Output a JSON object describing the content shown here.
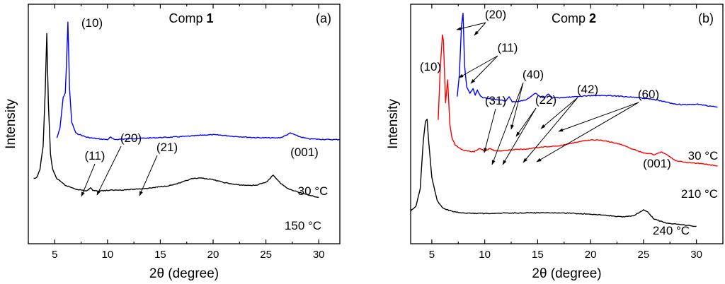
{
  "chart_data": [
    {
      "id": "a",
      "type": "line",
      "title": "Comp 1",
      "title_prefix": "Comp",
      "title_bold": "1",
      "panel_label": "(a)",
      "xlabel": "2θ (degree)",
      "ylabel": "Intensity",
      "xlim": [
        2.5,
        32
      ],
      "xticks": [
        5,
        10,
        15,
        20,
        25,
        30
      ],
      "ylim": [
        0,
        100
      ],
      "series": [
        {
          "name": "30 °C",
          "color": "#0000ff",
          "x": [
            5.2,
            5.5,
            5.8,
            6.0,
            6.1,
            6.25,
            6.4,
            6.6,
            7.0,
            8.0,
            9.0,
            10.0,
            10.3,
            10.6,
            12,
            14,
            16,
            18,
            19,
            20,
            21,
            22,
            24,
            26,
            26.5,
            27,
            27.3,
            27.6,
            28,
            28.5,
            29,
            30,
            31,
            32
          ],
          "y": [
            24,
            30,
            49,
            52,
            67,
            96,
            55,
            34,
            27,
            24.5,
            23.5,
            23,
            24.5,
            23,
            23.5,
            24,
            24.5,
            25.2,
            25.8,
            26,
            25.6,
            25,
            24.2,
            24,
            24.4,
            26,
            27,
            26.4,
            25.2,
            24.2,
            23.5,
            23.2,
            23,
            23
          ]
        },
        {
          "name": "150 °C",
          "color": "#000000",
          "x": [
            3.0,
            3.3,
            3.6,
            3.9,
            4.1,
            4.25,
            4.4,
            4.6,
            4.8,
            5.2,
            6,
            7,
            8,
            8.4,
            8.6,
            9,
            10,
            12,
            14,
            16,
            17,
            18,
            19,
            20,
            21,
            22,
            23,
            24,
            25,
            25.7,
            26.3,
            27,
            28,
            29,
            30
          ],
          "y": [
            15,
            15.5,
            20,
            32,
            62,
            92,
            55,
            28,
            20,
            15,
            11.5,
            9.5,
            8.5,
            10,
            9,
            8.5,
            8.8,
            9.2,
            10,
            11.5,
            13,
            15,
            15.3,
            14.5,
            13,
            12,
            11.5,
            11.5,
            13,
            17,
            13,
            10,
            8,
            6.5,
            5
          ]
        }
      ],
      "annotations": [
        "(10)",
        "(11)",
        "(20)",
        "(21)",
        "(001)",
        "30 °C",
        "150 °C"
      ]
    },
    {
      "id": "b",
      "type": "line",
      "title": "Comp 2",
      "title_prefix": "Comp",
      "title_bold": "2",
      "panel_label": "(b)",
      "xlabel": "2θ (degree)",
      "ylabel": "Intensity",
      "xlim": [
        3,
        32.5
      ],
      "xticks": [
        5,
        10,
        15,
        20,
        25,
        30
      ],
      "ylim": [
        0,
        100
      ],
      "series": [
        {
          "name": "30 °C",
          "color": "#0000ff",
          "x": [
            7.4,
            7.6,
            7.8,
            7.95,
            8.1,
            8.3,
            8.6,
            8.9,
            9.1,
            9.3,
            9.6,
            10,
            11,
            12,
            12.3,
            12.6,
            13,
            14,
            14.8,
            15.2,
            15.6,
            16,
            16.4,
            17,
            18,
            20,
            22,
            24,
            26,
            28,
            29,
            30,
            31,
            32
          ],
          "y": [
            42,
            56,
            88,
            96,
            62,
            48,
            44,
            47,
            43,
            46,
            42,
            41,
            40,
            39,
            42,
            38.5,
            38.5,
            40,
            44,
            42,
            41,
            43.5,
            41,
            41,
            41.5,
            42.5,
            42.5,
            41.5,
            40,
            37,
            36.5,
            37,
            36,
            35
          ]
        },
        {
          "name": "210 °C",
          "color": "#ff0000",
          "x": [
            5.6,
            5.8,
            6.0,
            6.1,
            6.3,
            6.5,
            6.7,
            6.9,
            7.2,
            7.6,
            8,
            8.5,
            9,
            9.5,
            10,
            10.5,
            11,
            12,
            13,
            14,
            15,
            16,
            17,
            18,
            19,
            20,
            21,
            22,
            23,
            24,
            25,
            26,
            26.7,
            27.2,
            28,
            29,
            30,
            31,
            32
          ],
          "y": [
            40,
            70,
            88,
            85,
            50,
            63,
            38,
            30,
            26,
            24,
            23,
            22.5,
            22,
            24,
            22.5,
            24,
            22.5,
            22.8,
            23.5,
            23.5,
            24.5,
            25,
            25.5,
            26.5,
            28,
            28.8,
            28.5,
            27.5,
            26,
            23.5,
            21.5,
            20.5,
            22,
            20.5,
            17,
            16,
            15.5,
            15,
            14
          ]
        },
        {
          "name": "240 °C",
          "color": "#000000",
          "x": [
            3.0,
            3.5,
            3.9,
            4.2,
            4.4,
            4.55,
            4.7,
            5.0,
            5.5,
            6,
            7,
            8,
            10,
            12,
            14,
            16,
            18,
            20,
            22,
            23,
            24,
            24.6,
            25,
            25.4,
            26,
            27,
            28,
            29,
            30
          ],
          "y": [
            7,
            10,
            22,
            55,
            68,
            70,
            55,
            30,
            14,
            9,
            6.5,
            5.5,
            5.2,
            5.6,
            5.6,
            5.6,
            5.4,
            4.8,
            3.6,
            2.8,
            3.5,
            6,
            7.5,
            6,
            1.5,
            -1,
            -2,
            -2.8,
            -3.5
          ]
        }
      ],
      "annotations": [
        "(10)",
        "(20)",
        "(11)",
        "(40)",
        "(31)",
        "(22)",
        "(42)",
        "(60)",
        "(001)",
        "30 °C",
        "210 °C",
        "240 °C"
      ]
    }
  ]
}
